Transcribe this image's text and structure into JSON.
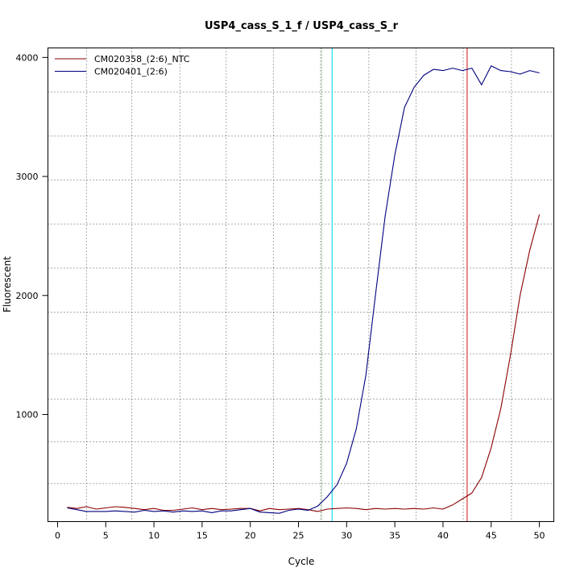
{
  "chart_data": {
    "type": "line",
    "title": "USP4_cass_S_1_f / USP4_cass_S_r",
    "xlabel": "Cycle",
    "ylabel": "Fluorescent",
    "xlim": [
      -1,
      51.5
    ],
    "ylim": [
      100,
      4080
    ],
    "x_ticks": [
      0,
      5,
      10,
      15,
      20,
      25,
      30,
      35,
      40,
      45,
      50
    ],
    "y_ticks": [
      1000,
      2000,
      3000,
      4000
    ],
    "legend_position": "top-left",
    "grid": {
      "vertical": [
        3,
        7.7,
        12.7,
        17.5,
        22.4,
        27.3,
        32.3,
        37.2,
        42.1,
        47.1
      ],
      "horizontal": [
        420,
        770,
        1130,
        1510,
        1860,
        2230,
        2600,
        2970,
        3340,
        3710
      ]
    },
    "vertical_markers": [
      {
        "x": 27.4,
        "color": "#2e8b2e",
        "style": "dotted"
      },
      {
        "x": 28.5,
        "color": "#40e0f0",
        "style": "solid"
      },
      {
        "x": 42.5,
        "color": "#e06060",
        "style": "solid"
      }
    ],
    "series": [
      {
        "name": "CM020358_(2:6)_NTC",
        "color": "#8b0000",
        "x": [
          1,
          2,
          3,
          4,
          5,
          6,
          7,
          8,
          9,
          10,
          11,
          12,
          13,
          14,
          15,
          16,
          17,
          18,
          19,
          20,
          21,
          22,
          23,
          24,
          25,
          26,
          27,
          28,
          29,
          30,
          31,
          32,
          33,
          34,
          35,
          36,
          37,
          38,
          39,
          40,
          41,
          42,
          43,
          44,
          45,
          46,
          47,
          48,
          49,
          50
        ],
        "values": [
          220,
          210,
          225,
          205,
          215,
          225,
          220,
          210,
          200,
          210,
          195,
          195,
          205,
          215,
          200,
          210,
          200,
          205,
          210,
          210,
          190,
          210,
          200,
          205,
          210,
          200,
          185,
          205,
          210,
          215,
          210,
          200,
          210,
          205,
          210,
          205,
          210,
          205,
          215,
          205,
          240,
          290,
          340,
          470,
          720,
          1050,
          1500,
          2000,
          2380,
          2680
        ]
      },
      {
        "name": "CM020401_(2:6)",
        "color": "#000080",
        "x": [
          1,
          2,
          3,
          4,
          5,
          6,
          7,
          8,
          9,
          10,
          11,
          12,
          13,
          14,
          15,
          16,
          17,
          18,
          19,
          20,
          21,
          22,
          23,
          24,
          25,
          26,
          27,
          28,
          29,
          30,
          31,
          32,
          33,
          34,
          35,
          36,
          37,
          38,
          39,
          40,
          41,
          42,
          43,
          44,
          45,
          46,
          47,
          48,
          49,
          50
        ],
        "values": [
          215,
          200,
          185,
          185,
          185,
          190,
          185,
          180,
          195,
          185,
          190,
          180,
          190,
          185,
          190,
          175,
          190,
          190,
          200,
          210,
          180,
          175,
          170,
          195,
          205,
          195,
          230,
          310,
          410,
          590,
          880,
          1330,
          2010,
          2670,
          3180,
          3580,
          3750,
          3850,
          3900,
          3890,
          3910,
          3890,
          3910,
          3770,
          3930,
          3890,
          3880,
          3860,
          3890,
          3870
        ]
      }
    ]
  }
}
